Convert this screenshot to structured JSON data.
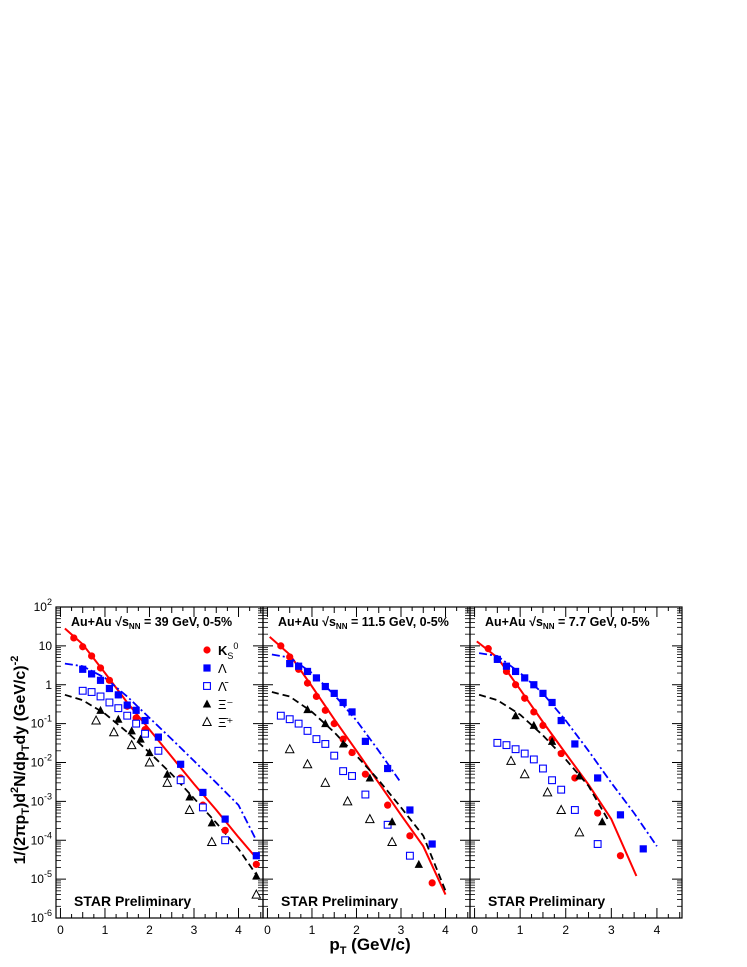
{
  "figure": {
    "ylabel": "1/(2πp_T)d²N/dp_Tdy (GeV/c)^-2",
    "xlabel": "p_T (GeV/c)",
    "watermark": "STAR Preliminary"
  },
  "chart_data": [
    {
      "type": "scatter",
      "title": "Au+Au √s_NN = 39 GeV, 0-5%",
      "xlim": [
        -0.1,
        4.55
      ],
      "ylim": [
        1e-06,
        100
      ],
      "yscale": "log",
      "xticks": [
        0,
        1,
        2,
        3,
        4
      ],
      "legend_position": "top-right",
      "series": [
        {
          "name": "K_S^0",
          "color": "#ff0000",
          "marker": "circle",
          "x": [
            0.3,
            0.5,
            0.7,
            0.9,
            1.1,
            1.3,
            1.5,
            1.7,
            1.9,
            2.2,
            2.7,
            3.2,
            3.7,
            4.4
          ],
          "y": [
            16,
            9.5,
            5.5,
            2.7,
            1.3,
            0.55,
            0.28,
            0.14,
            0.07,
            0.02,
            0.004,
            0.0008,
            0.00018,
            2.4e-05
          ]
        },
        {
          "name": "Λ",
          "color": "#0000ff",
          "marker": "square",
          "x": [
            0.5,
            0.7,
            0.9,
            1.1,
            1.3,
            1.5,
            1.7,
            1.9,
            2.2,
            2.7,
            3.2,
            3.7,
            4.4
          ],
          "y": [
            2.5,
            1.9,
            1.3,
            0.8,
            0.55,
            0.3,
            0.22,
            0.12,
            0.045,
            0.009,
            0.0017,
            0.00035,
            4e-05
          ]
        },
        {
          "name": "Λ̄",
          "color": "#0000ff",
          "marker": "open-square",
          "x": [
            0.5,
            0.7,
            0.9,
            1.1,
            1.3,
            1.5,
            1.7,
            1.9,
            2.2,
            2.7,
            3.2,
            3.7
          ],
          "y": [
            0.7,
            0.65,
            0.5,
            0.35,
            0.25,
            0.16,
            0.1,
            0.055,
            0.02,
            0.0035,
            0.0007,
            0.0001
          ]
        },
        {
          "name": "Ξ⁻",
          "color": "#000000",
          "marker": "triangle",
          "x": [
            0.9,
            1.3,
            1.6,
            1.8,
            2.0,
            2.4,
            2.9,
            3.4,
            4.4
          ],
          "y": [
            0.22,
            0.13,
            0.065,
            0.04,
            0.018,
            0.005,
            0.0013,
            0.00028,
            1.2e-05
          ]
        },
        {
          "name": "Ξ̄⁺",
          "color": "#000000",
          "marker": "open-triangle",
          "x": [
            0.8,
            1.2,
            1.6,
            2.0,
            2.4,
            2.9,
            3.4,
            4.4
          ],
          "y": [
            0.12,
            0.06,
            0.028,
            0.01,
            0.003,
            0.0006,
            9e-05,
            4e-06
          ]
        }
      ],
      "fits": [
        {
          "color": "#ff0000",
          "style": "solid",
          "x": [
            0.1,
            0.5,
            1.0,
            1.5,
            2.0,
            2.5,
            3.0,
            3.5,
            4.0,
            4.4
          ],
          "y": [
            28,
            11,
            2.0,
            0.35,
            0.07,
            0.014,
            0.0028,
            0.0006,
            0.00012,
            3.5e-05
          ]
        },
        {
          "color": "#0000ff",
          "style": "dash-dot",
          "x": [
            0.1,
            0.5,
            1.0,
            1.5,
            2.0,
            2.5,
            3.0,
            3.5,
            4.0,
            4.4
          ],
          "y": [
            3.5,
            3.0,
            1.5,
            0.5,
            0.14,
            0.04,
            0.011,
            0.003,
            0.0008,
            0.0001
          ]
        },
        {
          "color": "#000000",
          "style": "dashed",
          "x": [
            0.1,
            0.5,
            1.0,
            1.5,
            2.0,
            2.5,
            3.0,
            3.5,
            4.0,
            4.4
          ],
          "y": [
            0.55,
            0.4,
            0.18,
            0.06,
            0.018,
            0.005,
            0.0012,
            0.00028,
            6e-05,
            1.3e-05
          ]
        }
      ]
    },
    {
      "type": "scatter",
      "title": "Au+Au √s_NN = 11.5 GeV, 0-5%",
      "xlim": [
        -0.1,
        4.55
      ],
      "ylim": [
        1e-06,
        100
      ],
      "yscale": "log",
      "xticks": [
        0,
        1,
        2,
        3,
        4
      ],
      "series": [
        {
          "name": "K_S^0",
          "color": "#ff0000",
          "marker": "circle",
          "x": [
            0.3,
            0.5,
            0.7,
            0.9,
            1.1,
            1.3,
            1.5,
            1.7,
            1.9,
            2.2,
            2.7,
            3.2,
            3.7
          ],
          "y": [
            10,
            5.2,
            2.5,
            1.1,
            0.5,
            0.22,
            0.1,
            0.04,
            0.018,
            0.005,
            0.0008,
            0.00013,
            8e-06
          ]
        },
        {
          "name": "Λ",
          "color": "#0000ff",
          "marker": "square",
          "x": [
            0.5,
            0.7,
            0.9,
            1.1,
            1.3,
            1.5,
            1.7,
            1.9,
            2.2,
            2.7,
            3.2,
            3.7
          ],
          "y": [
            3.5,
            3.0,
            2.2,
            1.5,
            0.9,
            0.6,
            0.35,
            0.2,
            0.035,
            0.007,
            0.0006,
            8e-05
          ]
        },
        {
          "name": "Λ̄",
          "color": "#0000ff",
          "marker": "open-square",
          "x": [
            0.3,
            0.5,
            0.7,
            0.9,
            1.1,
            1.3,
            1.5,
            1.7,
            1.9,
            2.2,
            2.7,
            3.2
          ],
          "y": [
            0.16,
            0.13,
            0.1,
            0.065,
            0.04,
            0.03,
            0.015,
            0.006,
            0.0045,
            0.0015,
            0.00025,
            4e-05
          ]
        },
        {
          "name": "Ξ⁻",
          "color": "#000000",
          "marker": "triangle",
          "x": [
            0.9,
            1.3,
            1.7,
            2.3,
            2.8,
            3.4
          ],
          "y": [
            0.23,
            0.1,
            0.03,
            0.004,
            0.0003,
            2.4e-05
          ]
        },
        {
          "name": "Ξ̄⁺",
          "color": "#000000",
          "marker": "open-triangle",
          "x": [
            0.5,
            0.9,
            1.3,
            1.8,
            2.3,
            2.8
          ],
          "y": [
            0.022,
            0.009,
            0.003,
            0.001,
            0.00035,
            9e-05
          ]
        }
      ],
      "fits": [
        {
          "color": "#ff0000",
          "style": "solid",
          "x": [
            0.05,
            0.5,
            1.0,
            1.5,
            2.0,
            2.5,
            3.0,
            3.5,
            4.0
          ],
          "y": [
            17,
            6.0,
            0.9,
            0.13,
            0.02,
            0.003,
            0.00045,
            7e-05,
            4e-06
          ]
        },
        {
          "color": "#0000ff",
          "style": "dash-dot",
          "x": [
            0.1,
            0.5,
            1.0,
            1.5,
            2.0,
            2.5,
            3.0
          ],
          "y": [
            6.0,
            5.0,
            2.0,
            0.55,
            0.12,
            0.02,
            0.003
          ]
        },
        {
          "color": "#000000",
          "style": "dashed",
          "x": [
            0.1,
            0.5,
            1.0,
            1.5,
            2.0,
            2.5,
            3.0,
            3.5,
            4.0
          ],
          "y": [
            0.65,
            0.5,
            0.2,
            0.06,
            0.015,
            0.0035,
            0.0007,
            0.00013,
            5e-06
          ]
        }
      ]
    },
    {
      "type": "scatter",
      "title": "Au+Au √s_NN = 7.7 GeV, 0-5%",
      "xlim": [
        -0.1,
        4.55
      ],
      "ylim": [
        1e-06,
        100
      ],
      "yscale": "log",
      "xticks": [
        0,
        1,
        2,
        3,
        4
      ],
      "series": [
        {
          "name": "K_S^0",
          "color": "#ff0000",
          "marker": "circle",
          "x": [
            0.3,
            0.5,
            0.7,
            0.9,
            1.1,
            1.3,
            1.5,
            1.7,
            1.9,
            2.2,
            2.7,
            3.2
          ],
          "y": [
            8.5,
            4.5,
            2.2,
            1.0,
            0.45,
            0.2,
            0.09,
            0.04,
            0.017,
            0.004,
            0.0005,
            4e-05
          ]
        },
        {
          "name": "Λ",
          "color": "#0000ff",
          "marker": "square",
          "x": [
            0.5,
            0.7,
            0.9,
            1.1,
            1.3,
            1.5,
            1.7,
            1.9,
            2.2,
            2.7,
            3.2,
            3.7
          ],
          "y": [
            4.5,
            3.0,
            2.2,
            1.5,
            1.0,
            0.6,
            0.35,
            0.12,
            0.03,
            0.004,
            0.00045,
            6e-05
          ]
        },
        {
          "name": "Λ̄",
          "color": "#0000ff",
          "marker": "open-square",
          "x": [
            0.5,
            0.7,
            0.9,
            1.1,
            1.3,
            1.5,
            1.7,
            1.9,
            2.2,
            2.7
          ],
          "y": [
            0.032,
            0.028,
            0.022,
            0.017,
            0.012,
            0.007,
            0.0035,
            0.002,
            0.0006,
            8e-05
          ]
        },
        {
          "name": "Ξ⁻",
          "color": "#000000",
          "marker": "triangle",
          "x": [
            0.9,
            1.3,
            1.7,
            2.3,
            2.8
          ],
          "y": [
            0.16,
            0.09,
            0.035,
            0.0045,
            0.0003
          ]
        },
        {
          "name": "Ξ̄⁺",
          "color": "#000000",
          "marker": "open-triangle",
          "x": [
            0.8,
            1.1,
            1.6,
            1.9,
            2.3
          ],
          "y": [
            0.011,
            0.005,
            0.0017,
            0.0006,
            0.00016
          ]
        }
      ],
      "fits": [
        {
          "color": "#ff0000",
          "style": "solid",
          "x": [
            0.05,
            0.5,
            1.0,
            1.5,
            2.0,
            2.5,
            3.0,
            3.55
          ],
          "y": [
            13,
            5.0,
            0.75,
            0.11,
            0.017,
            0.0027,
            0.00035,
            1.2e-05
          ]
        },
        {
          "color": "#0000ff",
          "style": "dash-dot",
          "x": [
            0.1,
            0.5,
            1.0,
            1.5,
            2.0,
            2.5,
            3.0,
            3.5,
            4.0
          ],
          "y": [
            6.5,
            5.5,
            2.0,
            0.6,
            0.12,
            0.02,
            0.003,
            0.0005,
            7e-05
          ]
        },
        {
          "color": "#000000",
          "style": "dashed",
          "x": [
            0.1,
            0.5,
            1.0,
            1.5,
            2.0,
            2.5,
            2.95
          ],
          "y": [
            0.55,
            0.4,
            0.17,
            0.05,
            0.012,
            0.0025,
            0.0003
          ]
        }
      ]
    }
  ]
}
